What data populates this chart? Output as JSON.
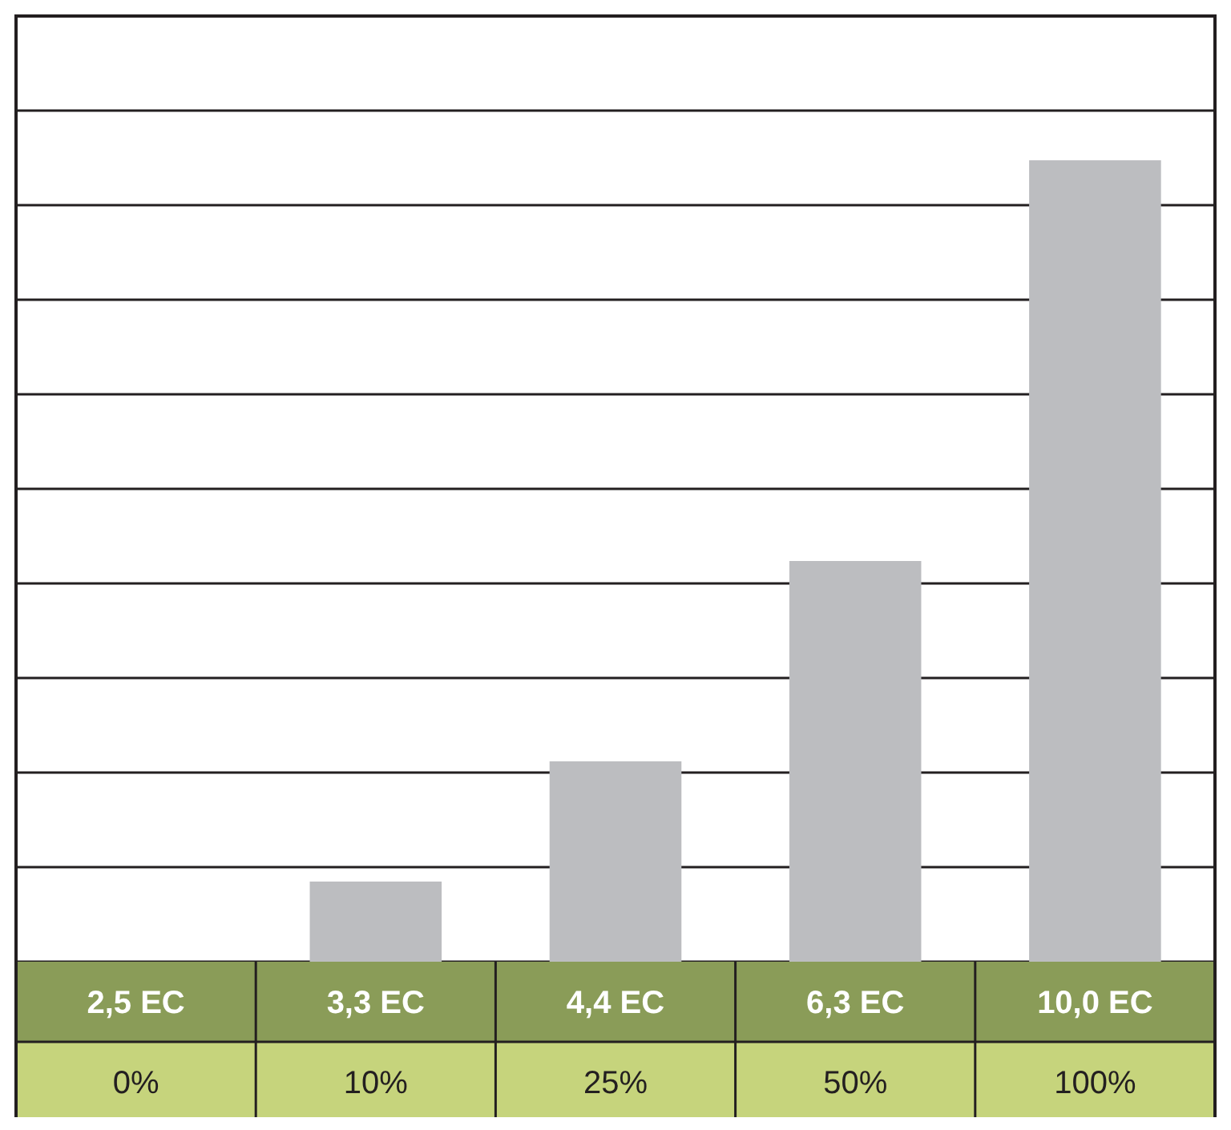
{
  "chart_data": {
    "type": "bar",
    "categories": [
      "2,5 EC",
      "3,3 EC",
      "4,4 EC",
      "6,3 EC",
      "10,0 EC"
    ],
    "values": [
      0,
      10,
      25,
      50,
      100
    ],
    "value_labels": [
      "0%",
      "10%",
      "25%",
      "50%",
      "100%"
    ],
    "color": "#bcbdc0",
    "ylim": [
      0,
      118
    ],
    "yticks": [
      {
        "value": 0,
        "label": null
      },
      {
        "value": 11.8,
        "label": null
      },
      {
        "value": 23.6,
        "label": null
      },
      {
        "value": 35.4,
        "label": null
      },
      {
        "value": 47.2,
        "label": null
      },
      {
        "value": 59,
        "label": null
      },
      {
        "value": 70.8,
        "label": null
      },
      {
        "value": 82.6,
        "label": null
      },
      {
        "value": 94.4,
        "label": null
      },
      {
        "value": 106.2,
        "label": null
      },
      {
        "value": 118,
        "label": null
      }
    ],
    "grid": "y"
  }
}
